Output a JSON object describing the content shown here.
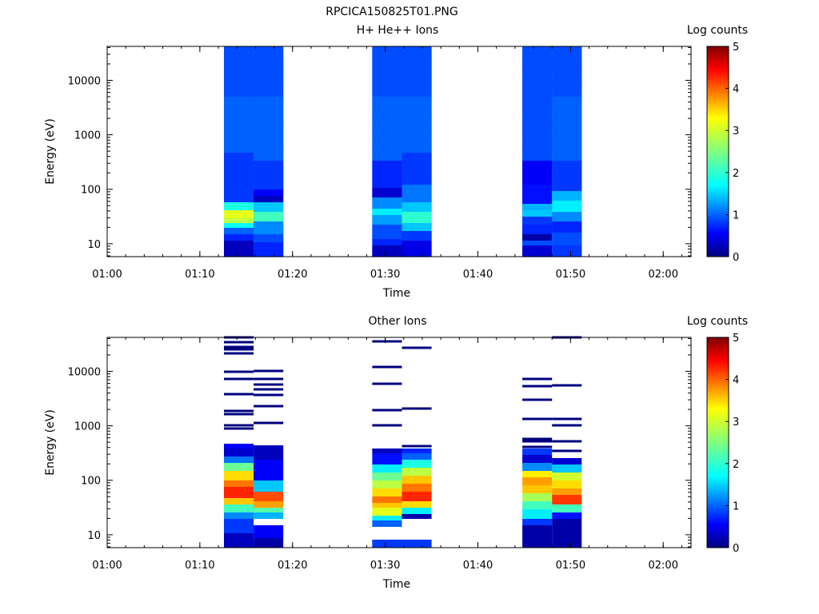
{
  "figure_title": "RPCICA150825T01.PNG",
  "chart_data": [
    {
      "type": "heatmap",
      "title": "H+ He++ Ions",
      "xlabel": "Time",
      "ylabel": "Energy (eV)",
      "y_scale": "log",
      "ylim": [
        5.8,
        42000
      ],
      "xlim": [
        "01:00",
        "02:03"
      ],
      "x_ticks": [
        "01:00",
        "01:10",
        "01:20",
        "01:30",
        "01:40",
        "01:50",
        "02:00"
      ],
      "y_ticks": [
        "10",
        "100",
        "1000",
        "10000"
      ],
      "colorbar": {
        "label": "Log counts",
        "min": 0,
        "max": 5,
        "ticks": [
          "0",
          "1",
          "2",
          "3",
          "4",
          "5"
        ]
      },
      "columns": [
        {
          "t_start": "01:12.6",
          "t_end": "01:15.8",
          "bands": [
            [
              0,
              20,
              0.3
            ],
            [
              20,
              28,
              0.8
            ],
            [
              28,
              36,
              1.1
            ],
            [
              36,
              42,
              1.9
            ],
            [
              42,
              48,
              2.8
            ],
            [
              48,
              58,
              3.0
            ],
            [
              58,
              68,
              2.0
            ],
            [
              68,
              130,
              0.9
            ],
            [
              130,
              200,
              1.1
            ],
            [
              200,
              263,
              1.0
            ]
          ]
        },
        {
          "t_start": "01:15.8",
          "t_end": "01:19.0",
          "bands": [
            [
              0,
              18,
              0.8
            ],
            [
              18,
              28,
              1.0
            ],
            [
              28,
              44,
              1.3
            ],
            [
              44,
              56,
              2.2
            ],
            [
              56,
              68,
              1.6
            ],
            [
              68,
              76,
              0.3
            ],
            [
              76,
              84,
              0.6
            ],
            [
              84,
              120,
              0.9
            ],
            [
              120,
              200,
              1.1
            ],
            [
              200,
              263,
              1.0
            ]
          ]
        },
        {
          "t_start": "01:28.6",
          "t_end": "01:31.8",
          "bands": [
            [
              0,
              14,
              0.3
            ],
            [
              14,
              22,
              0.8
            ],
            [
              22,
              40,
              1.0
            ],
            [
              40,
              52,
              1.4
            ],
            [
              52,
              60,
              1.8
            ],
            [
              60,
              74,
              1.3
            ],
            [
              74,
              86,
              0.4
            ],
            [
              86,
              120,
              0.8
            ],
            [
              120,
              200,
              1.1
            ],
            [
              200,
              263,
              1.0
            ]
          ]
        },
        {
          "t_start": "01:31.8",
          "t_end": "01:35.0",
          "bands": [
            [
              0,
              20,
              0.5
            ],
            [
              20,
              32,
              0.9
            ],
            [
              32,
              42,
              1.6
            ],
            [
              42,
              56,
              2.1
            ],
            [
              56,
              68,
              1.6
            ],
            [
              68,
              90,
              1.2
            ],
            [
              90,
              130,
              0.9
            ],
            [
              130,
              200,
              1.1
            ],
            [
              200,
              263,
              1.0
            ]
          ]
        },
        {
          "t_start": "01:44.8",
          "t_end": "01:48.0",
          "bands": [
            [
              0,
              14,
              0.4
            ],
            [
              14,
              20,
              1.0
            ],
            [
              20,
              28,
              0.2
            ],
            [
              28,
              40,
              0.8
            ],
            [
              40,
              50,
              0.9
            ],
            [
              50,
              58,
              1.6
            ],
            [
              58,
              66,
              1.5
            ],
            [
              66,
              90,
              0.7
            ],
            [
              90,
              120,
              0.6
            ],
            [
              120,
              200,
              1.0
            ],
            [
              200,
              263,
              1.0
            ]
          ]
        },
        {
          "t_start": "01:48.0",
          "t_end": "01:51.2",
          "bands": [
            [
              0,
              14,
              0.9
            ],
            [
              14,
              30,
              1.0
            ],
            [
              30,
              44,
              0.8
            ],
            [
              44,
              56,
              1.3
            ],
            [
              56,
              70,
              1.8
            ],
            [
              70,
              82,
              1.5
            ],
            [
              82,
              120,
              0.9
            ],
            [
              120,
              200,
              1.1
            ],
            [
              200,
              263,
              1.0
            ]
          ]
        }
      ]
    },
    {
      "type": "heatmap",
      "title": "Other Ions",
      "xlabel": "Time",
      "ylabel": "Energy (eV)",
      "y_scale": "log",
      "ylim": [
        5.8,
        42000
      ],
      "xlim": [
        "01:00",
        "02:03"
      ],
      "x_ticks": [
        "01:00",
        "01:10",
        "01:20",
        "01:30",
        "01:40",
        "01:50",
        "02:00"
      ],
      "y_ticks": [
        "10",
        "100",
        "1000",
        "10000"
      ],
      "colorbar": {
        "label": "Log counts",
        "min": 0,
        "max": 5,
        "ticks": [
          "0",
          "1",
          "2",
          "3",
          "4",
          "5"
        ]
      },
      "columns": [
        {
          "t_start": "01:12.6",
          "t_end": "01:15.8",
          "bands": [
            [
              0,
              18,
              0.3
            ],
            [
              18,
              36,
              0.9
            ],
            [
              36,
              44,
              1.3
            ],
            [
              44,
              54,
              2.2
            ],
            [
              54,
              62,
              3.4
            ],
            [
              62,
              76,
              4.2
            ],
            [
              76,
              84,
              3.8
            ],
            [
              84,
              96,
              3.3
            ],
            [
              96,
              106,
              2.4
            ],
            [
              106,
              114,
              1.2
            ],
            [
              114,
              124,
              0.4
            ],
            [
              124,
              130,
              0.6
            ]
          ],
          "lines": [
            149,
            153,
            167,
            171,
            192,
            211,
            220,
            248,
            257,
            263,
            251,
            243
          ]
        },
        {
          "t_start": "01:15.8",
          "t_end": "01:19.0",
          "bands": [
            [
              0,
              12,
              0.2
            ],
            [
              12,
              28,
              0.6
            ],
            [
              36,
              44,
              1.5
            ],
            [
              44,
              50,
              2.3
            ],
            [
              50,
              58,
              3.6
            ],
            [
              58,
              70,
              4.0
            ],
            [
              70,
              84,
              1.6
            ],
            [
              84,
              110,
              0.6
            ],
            [
              110,
              128,
              0.3
            ]
          ],
          "lines": [
            156,
            177,
            191,
            198,
            204,
            221,
            211
          ]
        },
        {
          "t_start": "01:28.6",
          "t_end": "01:31.8",
          "bands": [
            [
              26,
              34,
              1.1
            ],
            [
              34,
              40,
              1.8
            ],
            [
              40,
              50,
              3.0
            ],
            [
              50,
              56,
              3.4
            ],
            [
              56,
              64,
              3.8
            ],
            [
              64,
              74,
              3.3
            ],
            [
              74,
              84,
              2.8
            ],
            [
              84,
              94,
              2.4
            ],
            [
              94,
              104,
              1.8
            ],
            [
              104,
              118,
              0.7
            ],
            [
              118,
              124,
              0.3
            ]
          ],
          "lines": [
            153,
            172,
            205,
            226,
            258
          ],
          "base_band": [
            0,
            10,
            0.9
          ]
        },
        {
          "t_start": "01:31.8",
          "t_end": "01:35.0",
          "bands": [
            [
              36,
              42,
              0.2
            ],
            [
              42,
              50,
              1.8
            ],
            [
              50,
              58,
              3.3
            ],
            [
              58,
              70,
              4.2
            ],
            [
              70,
              80,
              3.8
            ],
            [
              80,
              90,
              3.4
            ],
            [
              90,
              100,
              2.8
            ],
            [
              100,
              110,
              2.0
            ],
            [
              110,
              118,
              1.1
            ],
            [
              118,
              124,
              0.8
            ]
          ],
          "lines": [
            127,
            174,
            250
          ],
          "base_band": [
            0,
            10,
            0.9
          ]
        },
        {
          "t_start": "01:44.8",
          "t_end": "01:48.0",
          "bands": [
            [
              0,
              28,
              0.2
            ],
            [
              28,
              36,
              0.9
            ],
            [
              36,
              48,
              1.8
            ],
            [
              48,
              58,
              2.2
            ],
            [
              58,
              68,
              2.7
            ],
            [
              68,
              78,
              3.4
            ],
            [
              78,
              88,
              3.6
            ],
            [
              88,
              96,
              3.2
            ],
            [
              96,
              106,
              1.3
            ],
            [
              106,
              116,
              0.4
            ],
            [
              116,
              124,
              0.9
            ]
          ],
          "lines": [
            126,
            133,
            136,
            161,
            185,
            202,
            211
          ]
        },
        {
          "t_start": "01:48.0",
          "t_end": "01:51.2",
          "bands": [
            [
              0,
              36,
              0.2
            ],
            [
              36,
              44,
              0.7
            ],
            [
              44,
              54,
              2.2
            ],
            [
              54,
              66,
              4.1
            ],
            [
              66,
              74,
              3.6
            ],
            [
              74,
              84,
              3.3
            ],
            [
              84,
              94,
              2.9
            ],
            [
              94,
              104,
              1.6
            ],
            [
              104,
              112,
              0.4
            ]
          ],
          "lines": [
            121,
            133,
            161,
            153,
            203,
            263
          ]
        }
      ]
    }
  ]
}
